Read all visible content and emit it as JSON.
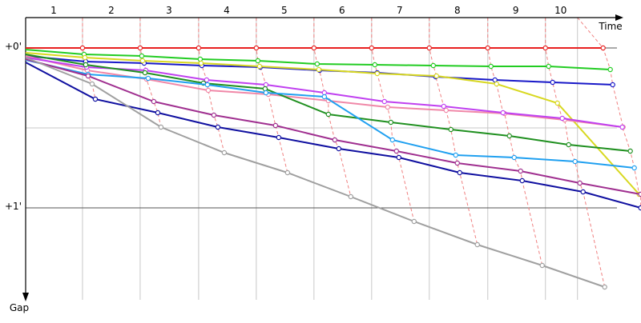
{
  "chart_data": {
    "type": "line",
    "x_label": "Time",
    "y_label": "Gap",
    "xlim": [
      0,
      232
    ],
    "ylim": [
      -11.4,
      94.5
    ],
    "xgrid": [
      21.3,
      42.9,
      64.8,
      86.4,
      108,
      129.6,
      151.2,
      173.1,
      194.7,
      206.7
    ],
    "xticks": [
      {
        "value": 10.5,
        "label": "1"
      },
      {
        "value": 32.1,
        "label": "2"
      },
      {
        "value": 53.7,
        "label": "3"
      },
      {
        "value": 75.3,
        "label": "4"
      },
      {
        "value": 96.9,
        "label": "5"
      },
      {
        "value": 118.5,
        "label": "6"
      },
      {
        "value": 140.1,
        "label": "7"
      },
      {
        "value": 161.7,
        "label": "8"
      },
      {
        "value": 183.6,
        "label": "9"
      },
      {
        "value": 200.4,
        "label": "10"
      }
    ],
    "ygrid": [
      0,
      30,
      60
    ],
    "yticks": [
      {
        "value": 0,
        "label": "+0'"
      },
      {
        "value": 60,
        "label": "+1'"
      }
    ],
    "lap_line_color": "#f08080",
    "series": [
      {
        "color": "#e82020",
        "x": [
          0,
          21.3,
          42.9,
          64.8,
          86.4,
          108,
          129.6,
          151.2,
          173.1,
          194.7,
          216.3
        ],
        "values": [
          0,
          0,
          0,
          0,
          0,
          0,
          0,
          0,
          0,
          0,
          0
        ]
      },
      {
        "color": "#22cc22",
        "x": [
          0,
          21.9,
          43.5,
          65.4,
          87,
          109.2,
          130.8,
          152.7,
          174.3,
          195.9,
          219
        ],
        "values": [
          0.6,
          2.4,
          3,
          4.2,
          4.8,
          6,
          6.3,
          6.6,
          6.9,
          6.9,
          8.1
        ]
      },
      {
        "color": "#1818c8",
        "x": [
          0,
          22.5,
          44.4,
          66,
          87.9,
          110.1,
          131.7,
          153.6,
          175.8,
          197.4,
          219.9
        ],
        "values": [
          3,
          5.1,
          5.7,
          6.6,
          7.2,
          8.4,
          9.3,
          10.8,
          12,
          12.9,
          13.8
        ]
      },
      {
        "color": "#d8d820",
        "x": [
          0,
          22.2,
          43.8,
          65.7,
          87.6,
          109.8,
          131.7,
          153.9,
          176.4,
          199.2,
          229.8
        ],
        "values": [
          1.8,
          3.6,
          4.8,
          5.7,
          6.9,
          8.1,
          9.6,
          10.5,
          13.5,
          20.7,
          54.9
        ]
      },
      {
        "color": "#f088a8",
        "x": [
          0,
          23.1,
          45.3,
          68.4,
          90.9,
          113.4,
          135.6,
          157.5,
          179.4,
          201.9,
          223.8
        ],
        "values": [
          3,
          8.4,
          11.7,
          15.9,
          17.4,
          19.8,
          22.2,
          23.4,
          24.6,
          27,
          29.7
        ]
      },
      {
        "color": "#c040f0",
        "x": [
          0,
          22.8,
          45,
          67.8,
          90,
          111.9,
          134.4,
          156.6,
          178.8,
          201,
          223.5
        ],
        "values": [
          3.6,
          7.2,
          8.4,
          12,
          13.8,
          16.8,
          20.1,
          21.9,
          24.3,
          26.4,
          29.7
        ]
      },
      {
        "color": "#209020",
        "x": [
          0,
          22.5,
          44.7,
          66.6,
          89.7,
          113.4,
          136.8,
          159.3,
          181.2,
          203.4,
          226.5
        ],
        "values": [
          2.4,
          6.3,
          9.3,
          13.2,
          15.3,
          24.9,
          27.9,
          30.6,
          33,
          36.3,
          38.7
        ]
      },
      {
        "color": "#20a0f0",
        "x": [
          0,
          23.4,
          45.9,
          68.1,
          90,
          111.9,
          137.4,
          161.1,
          183,
          205.8,
          228
        ],
        "values": [
          4.5,
          9.9,
          11.4,
          13.8,
          16.8,
          18.3,
          34.5,
          40.2,
          41.1,
          42.6,
          45
        ]
      },
      {
        "color": "#a03090",
        "x": [
          0,
          23.4,
          48,
          70.5,
          93.6,
          115.8,
          138.9,
          161.7,
          185.4,
          207.6,
          230.4
        ],
        "values": [
          4.2,
          10.5,
          20.1,
          25.2,
          29.1,
          34.5,
          38.7,
          43.2,
          46.2,
          50.7,
          54.9
        ]
      },
      {
        "color": "#1010a0",
        "x": [
          0,
          26.1,
          49.5,
          72,
          94.8,
          117.3,
          139.8,
          162.6,
          186,
          208.8,
          230.4
        ],
        "values": [
          5.4,
          19.2,
          24.3,
          29.7,
          33.6,
          37.8,
          41.1,
          46.8,
          49.8,
          54,
          60
        ]
      },
      {
        "color": "#a0a0a0",
        "x": [
          0,
          24.9,
          50.7,
          74.4,
          98.1,
          121.8,
          145.5,
          169.2,
          193.5,
          216.9
        ],
        "values": [
          3.6,
          13.5,
          29.7,
          39.3,
          46.8,
          55.8,
          65.1,
          73.8,
          81.6,
          89.7
        ]
      }
    ]
  }
}
